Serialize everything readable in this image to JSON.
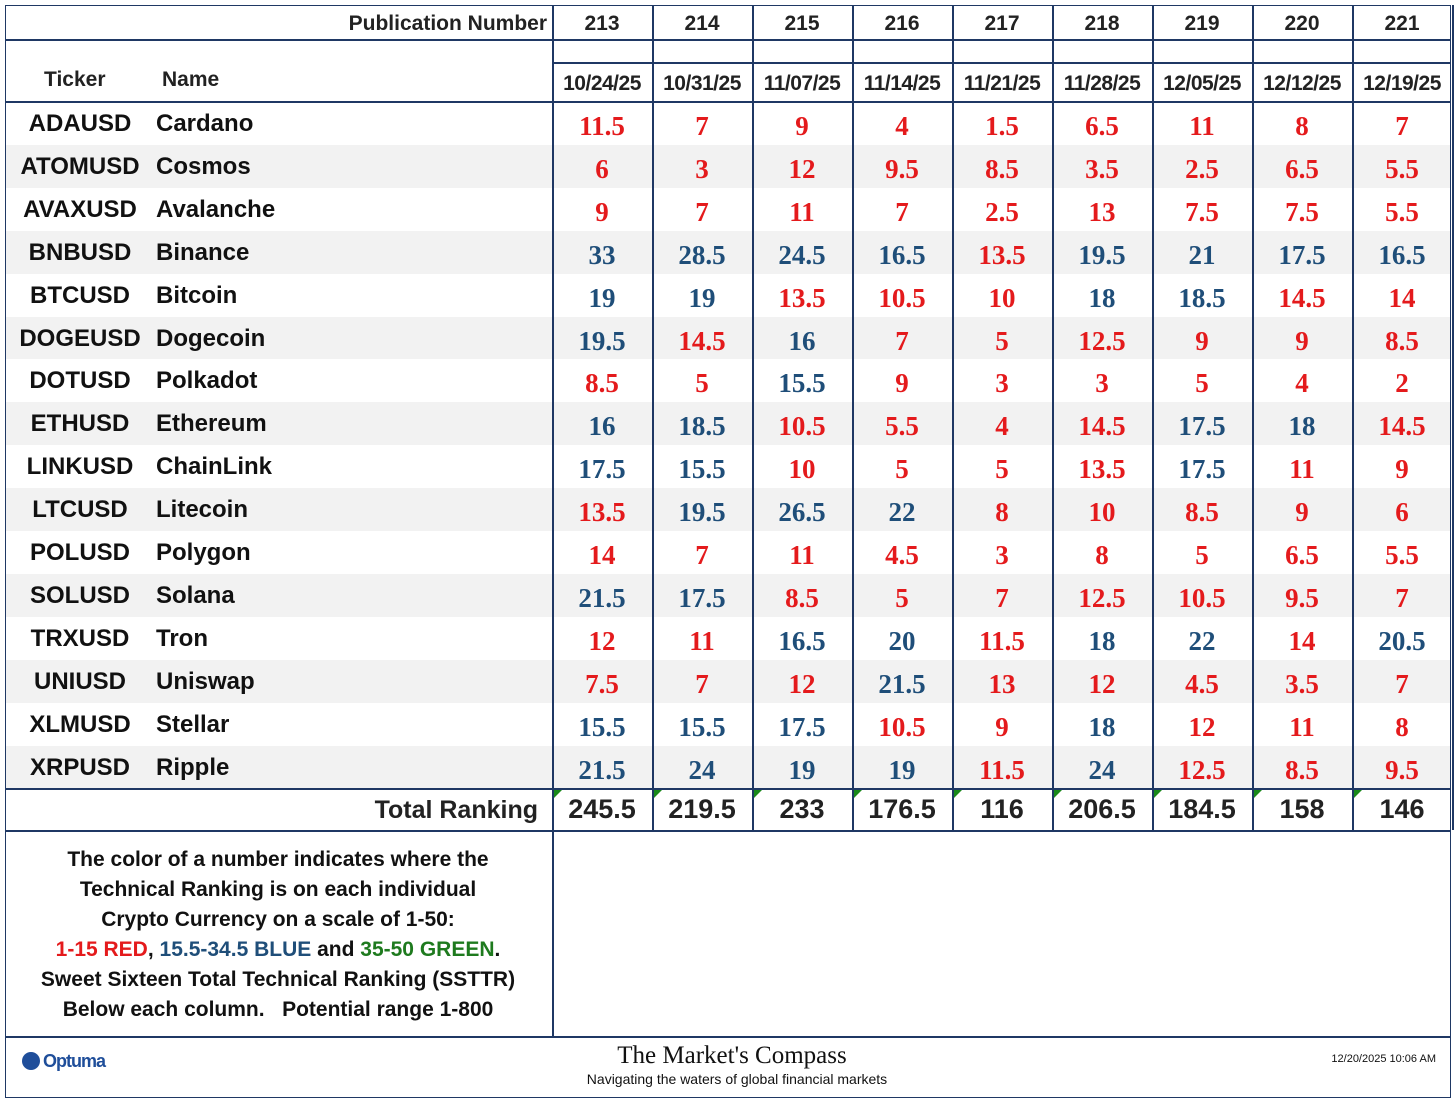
{
  "table": {
    "publication_label": "Publication Number",
    "ticker_label": "Ticker",
    "name_label": "Name",
    "publications": [
      213,
      214,
      215,
      216,
      217,
      218,
      219,
      220,
      221
    ],
    "dates": [
      "10/24/25",
      "10/31/25",
      "11/07/25",
      "11/14/25",
      "11/21/25",
      "11/28/25",
      "12/05/25",
      "12/12/25",
      "12/19/25"
    ],
    "rows": [
      {
        "ticker": "ADAUSD",
        "name": "Cardano",
        "values": [
          11.5,
          7,
          9,
          4,
          1.5,
          6.5,
          11,
          8,
          7
        ]
      },
      {
        "ticker": "ATOMUSD",
        "name": "Cosmos",
        "values": [
          6,
          3,
          12,
          9.5,
          8.5,
          3.5,
          2.5,
          6.5,
          5.5
        ]
      },
      {
        "ticker": "AVAXUSD",
        "name": "Avalanche",
        "values": [
          9,
          7,
          11,
          7,
          2.5,
          13,
          7.5,
          7.5,
          5.5
        ]
      },
      {
        "ticker": "BNBUSD",
        "name": "Binance",
        "values": [
          33,
          28.5,
          24.5,
          16.5,
          13.5,
          19.5,
          21,
          17.5,
          16.5
        ]
      },
      {
        "ticker": "BTCUSD",
        "name": "Bitcoin",
        "values": [
          19,
          19,
          13.5,
          10.5,
          10,
          18,
          18.5,
          14.5,
          14
        ]
      },
      {
        "ticker": "DOGEUSD",
        "name": "Dogecoin",
        "values": [
          19.5,
          14.5,
          16,
          7,
          5,
          12.5,
          9,
          9,
          8.5
        ]
      },
      {
        "ticker": "DOTUSD",
        "name": "Polkadot",
        "values": [
          8.5,
          5,
          15.5,
          9,
          3,
          3,
          5,
          4,
          2
        ]
      },
      {
        "ticker": "ETHUSD",
        "name": "Ethereum",
        "values": [
          16,
          18.5,
          10.5,
          5.5,
          4,
          14.5,
          17.5,
          18,
          14.5
        ]
      },
      {
        "ticker": "LINKUSD",
        "name": "ChainLink",
        "values": [
          17.5,
          15.5,
          10,
          5,
          5,
          13.5,
          17.5,
          11,
          9
        ]
      },
      {
        "ticker": "LTCUSD",
        "name": "Litecoin",
        "values": [
          13.5,
          19.5,
          26.5,
          22,
          8,
          10,
          8.5,
          9,
          6
        ]
      },
      {
        "ticker": "POLUSD",
        "name": "Polygon",
        "values": [
          14,
          7,
          11,
          4.5,
          3,
          8,
          5,
          6.5,
          5.5
        ]
      },
      {
        "ticker": "SOLUSD",
        "name": "Solana",
        "values": [
          21.5,
          17.5,
          8.5,
          5,
          7,
          12.5,
          10.5,
          9.5,
          7
        ]
      },
      {
        "ticker": "TRXUSD",
        "name": "Tron",
        "values": [
          12,
          11,
          16.5,
          20,
          11.5,
          18,
          22,
          14,
          20.5
        ]
      },
      {
        "ticker": "UNIUSD",
        "name": "Uniswap",
        "values": [
          7.5,
          7,
          12,
          21.5,
          13,
          12,
          4.5,
          3.5,
          7
        ]
      },
      {
        "ticker": "XLMUSD",
        "name": "Stellar",
        "values": [
          15.5,
          15.5,
          17.5,
          10.5,
          9,
          18,
          12,
          11,
          8
        ]
      },
      {
        "ticker": "XRPUSD",
        "name": "Ripple",
        "values": [
          21.5,
          24,
          19,
          19,
          11.5,
          24,
          12.5,
          8.5,
          9.5
        ]
      }
    ],
    "total_label": "Total Ranking",
    "totals": [
      245.5,
      219.5,
      233,
      176.5,
      116,
      206.5,
      184.5,
      158,
      146
    ]
  },
  "legend": {
    "lines": [
      "The color of a number indicates where the",
      "Technical Ranking is on each individual",
      "Crypto Currency on a scale of 1-50:"
    ],
    "segments": [
      {
        "text": "1-15 RED",
        "min": 1,
        "max": 15,
        "color": "#e41a1c"
      },
      {
        "text": ", "
      },
      {
        "text": "15.5-34.5 BLUE",
        "min": 15.5,
        "max": 34.5,
        "color": "#1f4e79"
      },
      {
        "text": " and "
      },
      {
        "text": "35-50 GREEN",
        "min": 35,
        "max": 50,
        "color": "#1e7a1e"
      },
      {
        "text": "."
      }
    ],
    "after": [
      "Sweet Sixteen Total Technical Ranking (SSTTR)",
      "Below each column.   Potential range 1-800"
    ]
  },
  "footer": {
    "logo": "Optuma",
    "brand": "The Market's Compass",
    "tagline": "Navigating the waters of global financial markets",
    "timestamp": "12/20/2025 10:06 AM"
  }
}
